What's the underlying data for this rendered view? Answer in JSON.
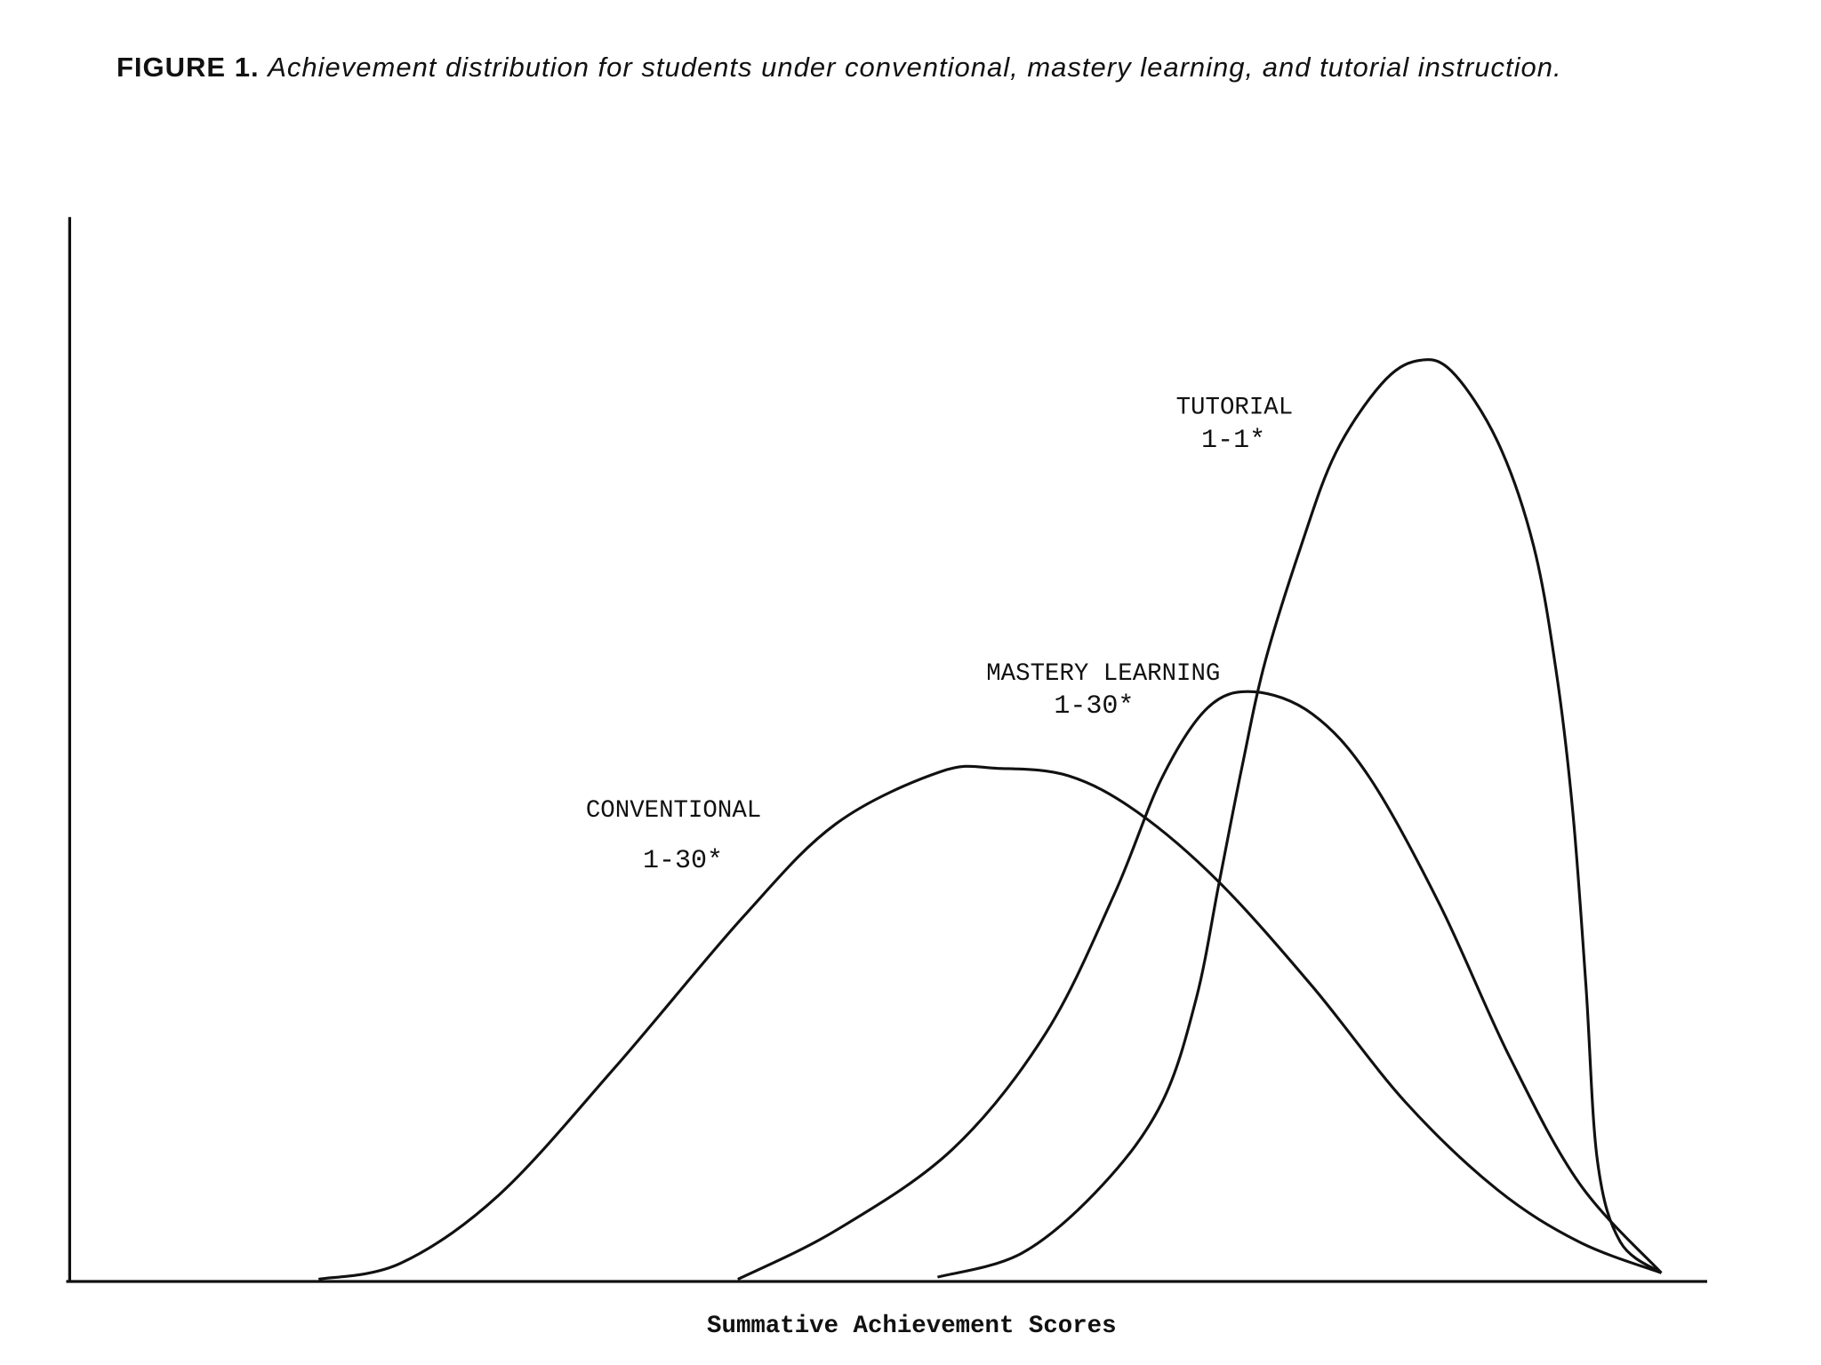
{
  "chart_data": {
    "type": "line",
    "title_label": "FIGURE 1.",
    "title": "Achievement distribution for students under conventional, mastery learning, and tutorial instruction.",
    "x_label": "Summative Achievement Scores",
    "xlim": [
      0,
      100
    ],
    "ylim": [
      0,
      100
    ],
    "series": [
      {
        "name": "CONVENTIONAL",
        "annotation": "1-30*",
        "color": "#111111",
        "x": [
          15.2,
          20.2,
          26.2,
          33.3,
          41.1,
          46.8,
          53.2,
          56.7,
          61.0,
          65.2,
          70.2,
          75.9,
          81.6,
          87.2,
          92.2,
          97.2
        ],
        "values": [
          0.2,
          1.7,
          8.1,
          20.1,
          34.2,
          43.0,
          47.9,
          48.2,
          47.5,
          44.1,
          37.5,
          27.7,
          16.8,
          8.6,
          3.7,
          0.8
        ]
      },
      {
        "name": "MASTERY LEARNING",
        "annotation": "1-30*",
        "color": "#111111",
        "x": [
          40.8,
          46.8,
          53.9,
          59.6,
          63.8,
          66.7,
          69.5,
          72.3,
          75.9,
          79.4,
          83.7,
          87.9,
          92.2,
          97.2
        ],
        "values": [
          0.2,
          4.8,
          12.4,
          23.3,
          36.4,
          47.3,
          53.9,
          55.4,
          53.3,
          47.3,
          35.3,
          21.2,
          9.2,
          0.8
        ]
      },
      {
        "name": "TUTORIAL",
        "annotation": "1-1*",
        "color": "#111111",
        "x": [
          53.0,
          58.2,
          63.1,
          66.7,
          68.8,
          70.2,
          71.6,
          73.0,
          75.2,
          77.3,
          80.1,
          82.3,
          84.4,
          87.2,
          89.4,
          90.8,
          91.8,
          92.6,
          93.3,
          94.7,
          97.2
        ],
        "values": [
          0.4,
          2.7,
          9.1,
          16.8,
          26.6,
          37.5,
          48.4,
          58.2,
          69.1,
          77.8,
          84.3,
          86.5,
          85.5,
          78.9,
          69.1,
          57.1,
          44.0,
          27.7,
          11.3,
          3.7,
          0.8
        ]
      }
    ]
  }
}
